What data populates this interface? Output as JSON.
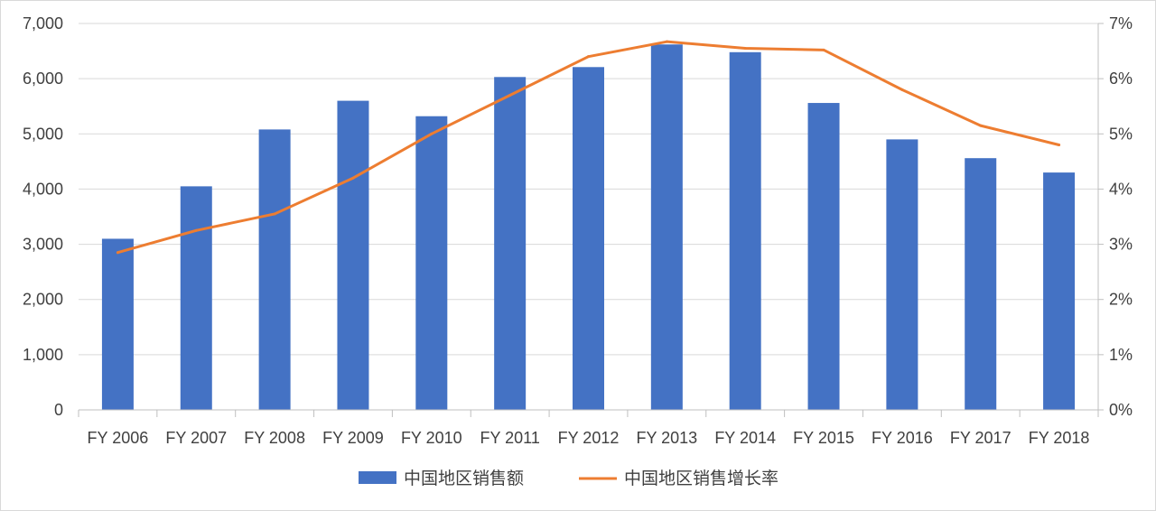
{
  "chart_data": {
    "type": "bar",
    "categories": [
      "FY 2006",
      "FY 2007",
      "FY 2008",
      "FY 2009",
      "FY 2010",
      "FY 2011",
      "FY 2012",
      "FY 2013",
      "FY 2014",
      "FY 2015",
      "FY 2016",
      "FY 2017",
      "FY 2018"
    ],
    "series": [
      {
        "name": "中国地区销售额",
        "type": "bar",
        "axis": "left",
        "color": "#4472c4",
        "values": [
          3100,
          4050,
          5080,
          5600,
          5320,
          6030,
          6210,
          6620,
          6480,
          5560,
          4900,
          4560,
          4300
        ]
      },
      {
        "name": "中国地区销售增长率",
        "type": "line",
        "axis": "right",
        "color": "#ed7d31",
        "values": [
          2.85,
          3.25,
          3.55,
          4.2,
          5.0,
          5.7,
          6.4,
          6.67,
          6.55,
          6.52,
          5.8,
          5.15,
          4.8
        ]
      }
    ],
    "y_left": {
      "min": 0,
      "max": 7000,
      "ticks": [
        "0",
        "1,000",
        "2,000",
        "3,000",
        "4,000",
        "5,000",
        "6,000",
        "7,000"
      ]
    },
    "y_right": {
      "min": 0,
      "max": 7,
      "ticks": [
        "0%",
        "1%",
        "2%",
        "3%",
        "4%",
        "5%",
        "6%",
        "7%"
      ]
    },
    "grid": true,
    "legend": "bottom-center",
    "title": "",
    "xlabel": "",
    "ylabel": ""
  }
}
